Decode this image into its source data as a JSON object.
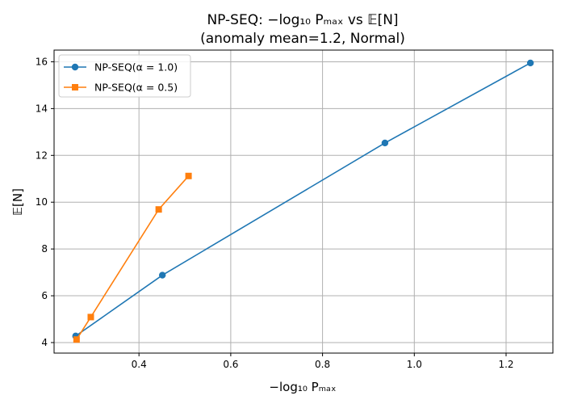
{
  "chart_data": {
    "type": "line",
    "title": "NP-SEQ: −log₁₀ Pₘₐₓ vs 𝔼[N]",
    "subtitle": "(anomaly mean=1.2, Normal)",
    "xlabel": "−log₁₀ Pₘₐₓ",
    "ylabel": "𝔼[N]",
    "xlim": [
      0.215,
      1.302
    ],
    "ylim": [
      3.55,
      16.5
    ],
    "xticks": [
      0.4,
      0.6,
      0.8,
      1.0,
      1.2
    ],
    "xtick_labels": [
      "0.4",
      "0.6",
      "0.8",
      "1.0",
      "1.2"
    ],
    "yticks": [
      4,
      6,
      8,
      10,
      12,
      14,
      16
    ],
    "ytick_labels": [
      "4",
      "6",
      "8",
      "10",
      "12",
      "14",
      "16"
    ],
    "grid": true,
    "legend_position": "top-left",
    "series": [
      {
        "name": "NP-SEQ(α = 1.0)",
        "color": "#1f77b4",
        "marker": "circle",
        "x": [
          0.262,
          0.451,
          0.936,
          1.253
        ],
        "y": [
          4.28,
          6.88,
          12.53,
          15.95
        ]
      },
      {
        "name": "NP-SEQ(α = 0.5)",
        "color": "#ff7f0e",
        "marker": "square",
        "x": [
          0.264,
          0.295,
          0.443,
          0.508
        ],
        "y": [
          4.13,
          5.09,
          9.69,
          11.12
        ]
      }
    ]
  }
}
